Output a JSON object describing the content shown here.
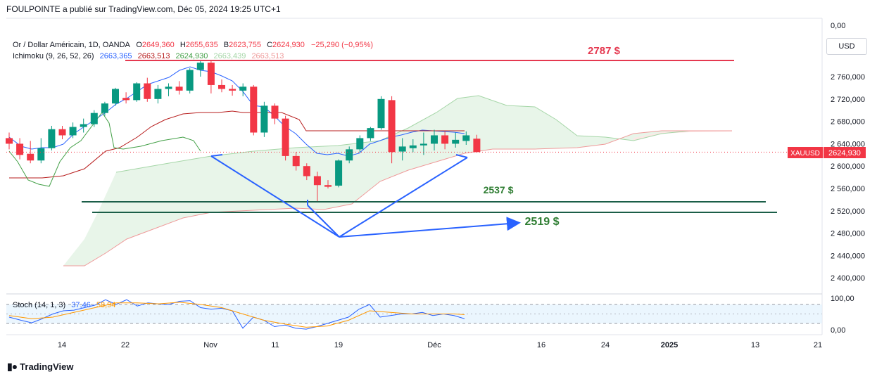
{
  "header": {
    "publisher": "FOULPOINTE a publié sur TradingView.com, Déc 05, 2024 19:25 UTC+1"
  },
  "legend": {
    "symbol": "Or / Dollar Américain, 1D, OANDA",
    "o_label": "O",
    "o": "2649,360",
    "h_label": "H",
    "h": "2655,635",
    "b_label": "B",
    "b": "2623,755",
    "c_label": "C",
    "c": "2624,930",
    "change": "−25,290 (−0,95%)",
    "ichimoku_name": "Ichimoku (9, 26, 52, 26)",
    "ichimoku_values": [
      "2663,365",
      "2663,513",
      "2624,930",
      "2663,439",
      "2663,513"
    ],
    "stoch_name": "Stoch (14, 1, 3)",
    "stoch_values": [
      "37,46",
      "58,94"
    ]
  },
  "currency_button": "USD",
  "price_tag": {
    "symbol": "XAUUSD",
    "value": "2624,930"
  },
  "annotations": {
    "level_2787": "2787 $",
    "level_2537": "2537 $",
    "level_2519": "2519 $"
  },
  "branding": {
    "name": "TradingView"
  },
  "colors": {
    "up": "#089981",
    "down": "#f23645",
    "tenkan": "#2962ff",
    "kijun": "#b71c1c",
    "chikou": "#43a047",
    "cloud_green": "#e8f5e9",
    "cloud_red": "#fce8e6",
    "annotation_blue": "#2962ff",
    "green_line": "#1b5e48",
    "red_line": "#e53950"
  },
  "chart_data": {
    "type": "candlestick",
    "y_axis": {
      "min": 2370,
      "max": 2800,
      "ticks": [
        "2 760,000",
        "2 720,000",
        "2 680,000",
        "2 640,000",
        "2 600,000",
        "2 560,000",
        "2 520,000",
        "2 480,000",
        "2 440,000",
        "2 400,000"
      ],
      "tick_values": [
        2760,
        2720,
        2680,
        2640,
        2600,
        2560,
        2520,
        2480,
        2440,
        2400
      ],
      "top_label": "0,00"
    },
    "x_axis": {
      "ticks": [
        "14",
        "22",
        "Nov",
        "11",
        "19",
        "Déc",
        "16",
        "24",
        "2025",
        "13",
        "21"
      ]
    },
    "candles": [
      {
        "o": 2650,
        "h": 2660,
        "l": 2630,
        "c": 2640
      },
      {
        "o": 2640,
        "h": 2650,
        "l": 2612,
        "c": 2620
      },
      {
        "o": 2622,
        "h": 2645,
        "l": 2605,
        "c": 2610
      },
      {
        "o": 2610,
        "h": 2650,
        "l": 2605,
        "c": 2632
      },
      {
        "o": 2632,
        "h": 2672,
        "l": 2628,
        "c": 2666
      },
      {
        "o": 2666,
        "h": 2672,
        "l": 2648,
        "c": 2655
      },
      {
        "o": 2655,
        "h": 2678,
        "l": 2650,
        "c": 2670
      },
      {
        "o": 2670,
        "h": 2685,
        "l": 2660,
        "c": 2675
      },
      {
        "o": 2675,
        "h": 2700,
        "l": 2670,
        "c": 2695
      },
      {
        "o": 2695,
        "h": 2715,
        "l": 2690,
        "c": 2712
      },
      {
        "o": 2712,
        "h": 2740,
        "l": 2708,
        "c": 2738
      },
      {
        "o": 2722,
        "h": 2732,
        "l": 2712,
        "c": 2718
      },
      {
        "o": 2718,
        "h": 2750,
        "l": 2715,
        "c": 2748
      },
      {
        "o": 2748,
        "h": 2758,
        "l": 2715,
        "c": 2720
      },
      {
        "o": 2720,
        "h": 2745,
        "l": 2712,
        "c": 2738
      },
      {
        "o": 2738,
        "h": 2748,
        "l": 2725,
        "c": 2742
      },
      {
        "o": 2742,
        "h": 2752,
        "l": 2728,
        "c": 2735
      },
      {
        "o": 2735,
        "h": 2775,
        "l": 2730,
        "c": 2772
      },
      {
        "o": 2772,
        "h": 2790,
        "l": 2760,
        "c": 2785
      },
      {
        "o": 2785,
        "h": 2790,
        "l": 2730,
        "c": 2745
      },
      {
        "o": 2745,
        "h": 2755,
        "l": 2732,
        "c": 2738
      },
      {
        "o": 2738,
        "h": 2745,
        "l": 2726,
        "c": 2735
      },
      {
        "o": 2735,
        "h": 2748,
        "l": 2725,
        "c": 2742
      },
      {
        "o": 2742,
        "h": 2745,
        "l": 2655,
        "c": 2660
      },
      {
        "o": 2660,
        "h": 2715,
        "l": 2652,
        "c": 2708
      },
      {
        "o": 2708,
        "h": 2712,
        "l": 2675,
        "c": 2685
      },
      {
        "o": 2685,
        "h": 2690,
        "l": 2610,
        "c": 2618
      },
      {
        "o": 2618,
        "h": 2625,
        "l": 2592,
        "c": 2600
      },
      {
        "o": 2600,
        "h": 2605,
        "l": 2575,
        "c": 2582
      },
      {
        "o": 2582,
        "h": 2590,
        "l": 2537,
        "c": 2566
      },
      {
        "o": 2566,
        "h": 2575,
        "l": 2560,
        "c": 2563
      },
      {
        "o": 2565,
        "h": 2612,
        "l": 2562,
        "c": 2610
      },
      {
        "o": 2610,
        "h": 2635,
        "l": 2605,
        "c": 2630
      },
      {
        "o": 2630,
        "h": 2655,
        "l": 2625,
        "c": 2650
      },
      {
        "o": 2650,
        "h": 2670,
        "l": 2645,
        "c": 2668
      },
      {
        "o": 2668,
        "h": 2725,
        "l": 2665,
        "c": 2720
      },
      {
        "o": 2718,
        "h": 2725,
        "l": 2605,
        "c": 2625
      },
      {
        "o": 2626,
        "h": 2650,
        "l": 2610,
        "c": 2635
      },
      {
        "o": 2632,
        "h": 2648,
        "l": 2625,
        "c": 2637
      },
      {
        "o": 2637,
        "h": 2660,
        "l": 2620,
        "c": 2640
      },
      {
        "o": 2640,
        "h": 2665,
        "l": 2628,
        "c": 2655
      },
      {
        "o": 2655,
        "h": 2662,
        "l": 2630,
        "c": 2640
      },
      {
        "o": 2640,
        "h": 2660,
        "l": 2633,
        "c": 2647
      },
      {
        "o": 2645,
        "h": 2662,
        "l": 2638,
        "c": 2655
      },
      {
        "o": 2649,
        "h": 2656,
        "l": 2624,
        "c": 2625
      }
    ],
    "horizontal_levels": [
      2787,
      2537,
      2519
    ],
    "last_price": 2624.93
  }
}
